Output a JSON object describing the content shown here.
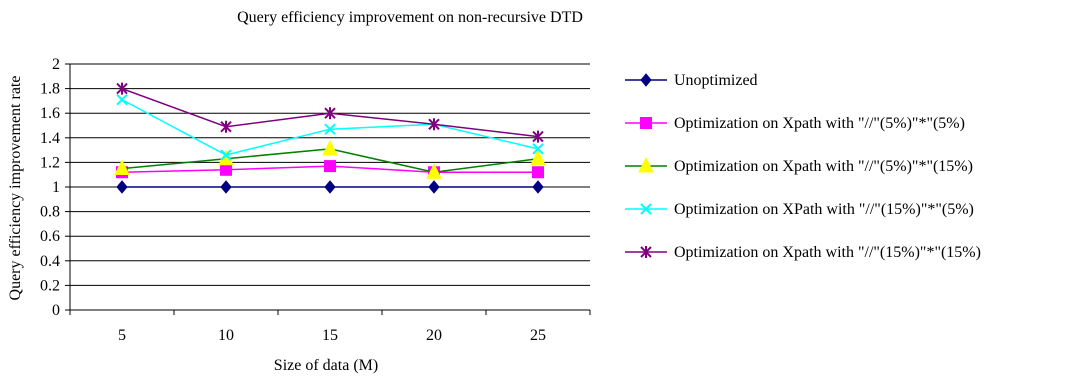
{
  "chart_data": {
    "type": "line",
    "title": "Query efficiency improvement on non-recursive DTD",
    "xlabel": "Size of data (M)",
    "ylabel": "Query efficiency improvement rate",
    "categories": [
      "5",
      "10",
      "15",
      "20",
      "25"
    ],
    "ylim": [
      0,
      2
    ],
    "yticks": [
      "0",
      "0.2",
      "0.4",
      "0.6",
      "0.8",
      "1",
      "1.2",
      "1.4",
      "1.6",
      "1.8",
      "2"
    ],
    "grid": true,
    "legend_position": "right",
    "series": [
      {
        "name": "Unoptimized",
        "values": [
          1.0,
          1.0,
          1.0,
          1.0,
          1.0
        ],
        "color": "#000080",
        "marker": "diamond"
      },
      {
        "name": "Optimization on Xpath with \"//\"(5%)\"*\"(5%)",
        "values": [
          1.12,
          1.14,
          1.17,
          1.12,
          1.12
        ],
        "color": "#ff00ff",
        "marker": "square"
      },
      {
        "name": "Optimization on Xpath with \"//\"(5%)\"*\"(15%)",
        "values": [
          1.15,
          1.23,
          1.31,
          1.12,
          1.23
        ],
        "color": "#008000",
        "marker": "triangle",
        "marker_color": "#ffff00"
      },
      {
        "name": "Optimization on XPath with \"//\"(15%)\"*\"(5%)",
        "values": [
          1.71,
          1.26,
          1.47,
          1.51,
          1.31
        ],
        "color": "#00ffff",
        "marker": "x"
      },
      {
        "name": "Optimization on Xpath with \"//\"(15%)\"*\"(15%)",
        "values": [
          1.8,
          1.49,
          1.6,
          1.51,
          1.41
        ],
        "color": "#800080",
        "marker": "star"
      }
    ]
  }
}
